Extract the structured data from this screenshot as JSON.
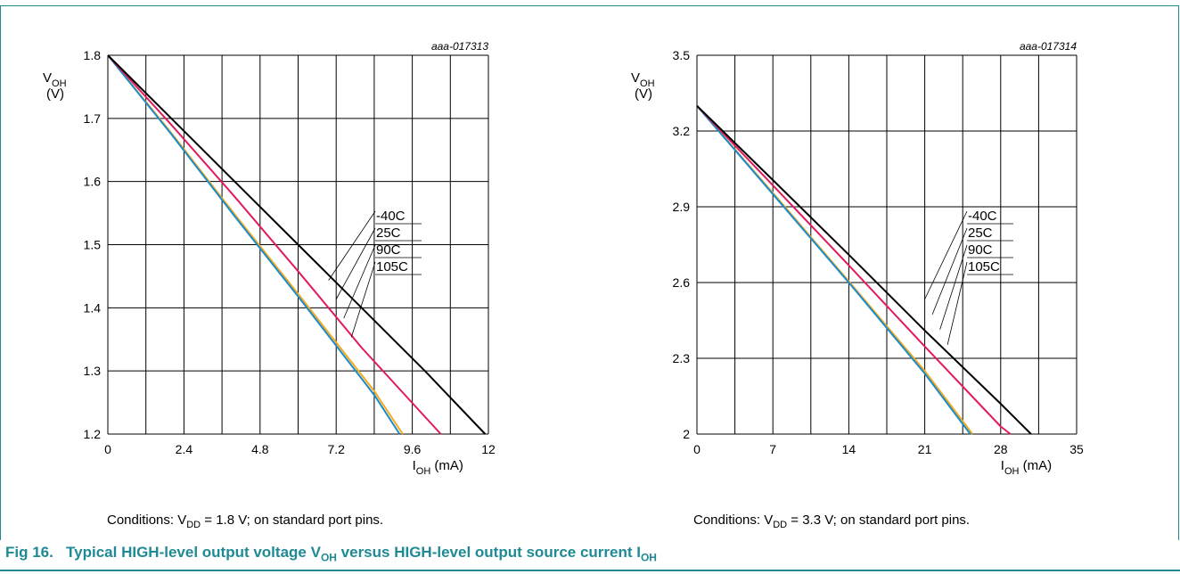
{
  "caption": {
    "label": "Fig 16.",
    "text_parts": [
      "Typical HIGH-level output voltage V",
      "OH",
      " versus HIGH-level output source current I",
      "OH"
    ]
  },
  "colors": {
    "frame": "#1e8a94",
    "caption": "#1e8a94",
    "grid": "#000000",
    "-40C": "#000000",
    "25C": "#e2195e",
    "90C": "#1a8ccc",
    "105C": "#f5aa1c"
  },
  "chart_data": [
    {
      "type": "line",
      "code": "aaa-017313",
      "ylabel": {
        "main": "V",
        "sub": "OH",
        "unit": "(V)"
      },
      "xlabel": {
        "main": "I",
        "sub": "OH",
        "unit": " (mA)"
      },
      "xlim": [
        0,
        12
      ],
      "ylim": [
        1.2,
        1.8
      ],
      "xticks": [
        "0",
        "2.4",
        "4.8",
        "7.2",
        "9.6",
        "12"
      ],
      "yticks": [
        "1.2",
        "1.3",
        "1.4",
        "1.5",
        "1.6",
        "1.7",
        "1.8"
      ],
      "grid": true,
      "legend_position": "right-middle",
      "condition": {
        "prefix": "Conditions: V",
        "sub": "DD",
        "suffix": " = 1.8 V; on standard port pins."
      },
      "series": [
        {
          "name": "-40C",
          "color": "#000000",
          "x": [
            0,
            2,
            4,
            6,
            8,
            10,
            11.9
          ],
          "y": [
            1.8,
            1.7,
            1.6,
            1.5,
            1.4,
            1.3,
            1.2
          ]
        },
        {
          "name": "25C",
          "color": "#e2195e",
          "x": [
            0,
            2,
            4,
            6,
            8,
            10.5
          ],
          "y": [
            1.8,
            1.69,
            1.576,
            1.458,
            1.337,
            1.2
          ]
        },
        {
          "name": "90C",
          "color": "#1a8ccc",
          "x": [
            0,
            2,
            4,
            6,
            7.2,
            8.4,
            9.2
          ],
          "y": [
            1.8,
            1.675,
            1.545,
            1.418,
            1.34,
            1.262,
            1.2
          ]
        },
        {
          "name": "105C",
          "color": "#f5aa1c",
          "x": [
            0,
            2,
            4,
            6,
            7.2,
            8.4,
            9.3
          ],
          "y": [
            1.8,
            1.677,
            1.548,
            1.422,
            1.345,
            1.268,
            1.2
          ]
        }
      ],
      "legend_labels": [
        "-40C",
        "25C",
        "90C",
        "105C"
      ]
    },
    {
      "type": "line",
      "code": "aaa-017314",
      "ylabel": {
        "main": "V",
        "sub": "OH",
        "unit": "(V)"
      },
      "xlabel": {
        "main": "I",
        "sub": "OH",
        "unit": " (mA)"
      },
      "xlim": [
        0,
        35
      ],
      "ylim": [
        2,
        3.5
      ],
      "xticks": [
        "0",
        "7",
        "14",
        "21",
        "28",
        "35"
      ],
      "yticks": [
        "2",
        "2.3",
        "2.6",
        "2.9",
        "3.2",
        "3.5"
      ],
      "grid": true,
      "legend_position": "right-middle",
      "condition": {
        "prefix": "Conditions: V",
        "sub": "DD",
        "suffix": " = 3.3 V; on standard port pins."
      },
      "series": [
        {
          "name": "-40C",
          "color": "#000000",
          "x": [
            0,
            7,
            14,
            21,
            28,
            30.8
          ],
          "y": [
            3.3,
            3.006,
            2.71,
            2.41,
            2.12,
            2.0
          ]
        },
        {
          "name": "25C",
          "color": "#e2195e",
          "x": [
            0,
            7,
            14,
            21,
            28,
            28.9
          ],
          "y": [
            3.3,
            2.985,
            2.668,
            2.347,
            2.03,
            2.0
          ]
        },
        {
          "name": "90C",
          "color": "#1a8ccc",
          "x": [
            0,
            7,
            14,
            21,
            25.2
          ],
          "y": [
            3.3,
            2.95,
            2.6,
            2.24,
            2.0
          ]
        },
        {
          "name": "105C",
          "color": "#f5aa1c",
          "x": [
            0,
            7,
            14,
            21,
            25.4
          ],
          "y": [
            3.3,
            2.955,
            2.605,
            2.25,
            2.0
          ]
        }
      ],
      "legend_labels": [
        "-40C",
        "25C",
        "90C",
        "105C"
      ]
    }
  ]
}
